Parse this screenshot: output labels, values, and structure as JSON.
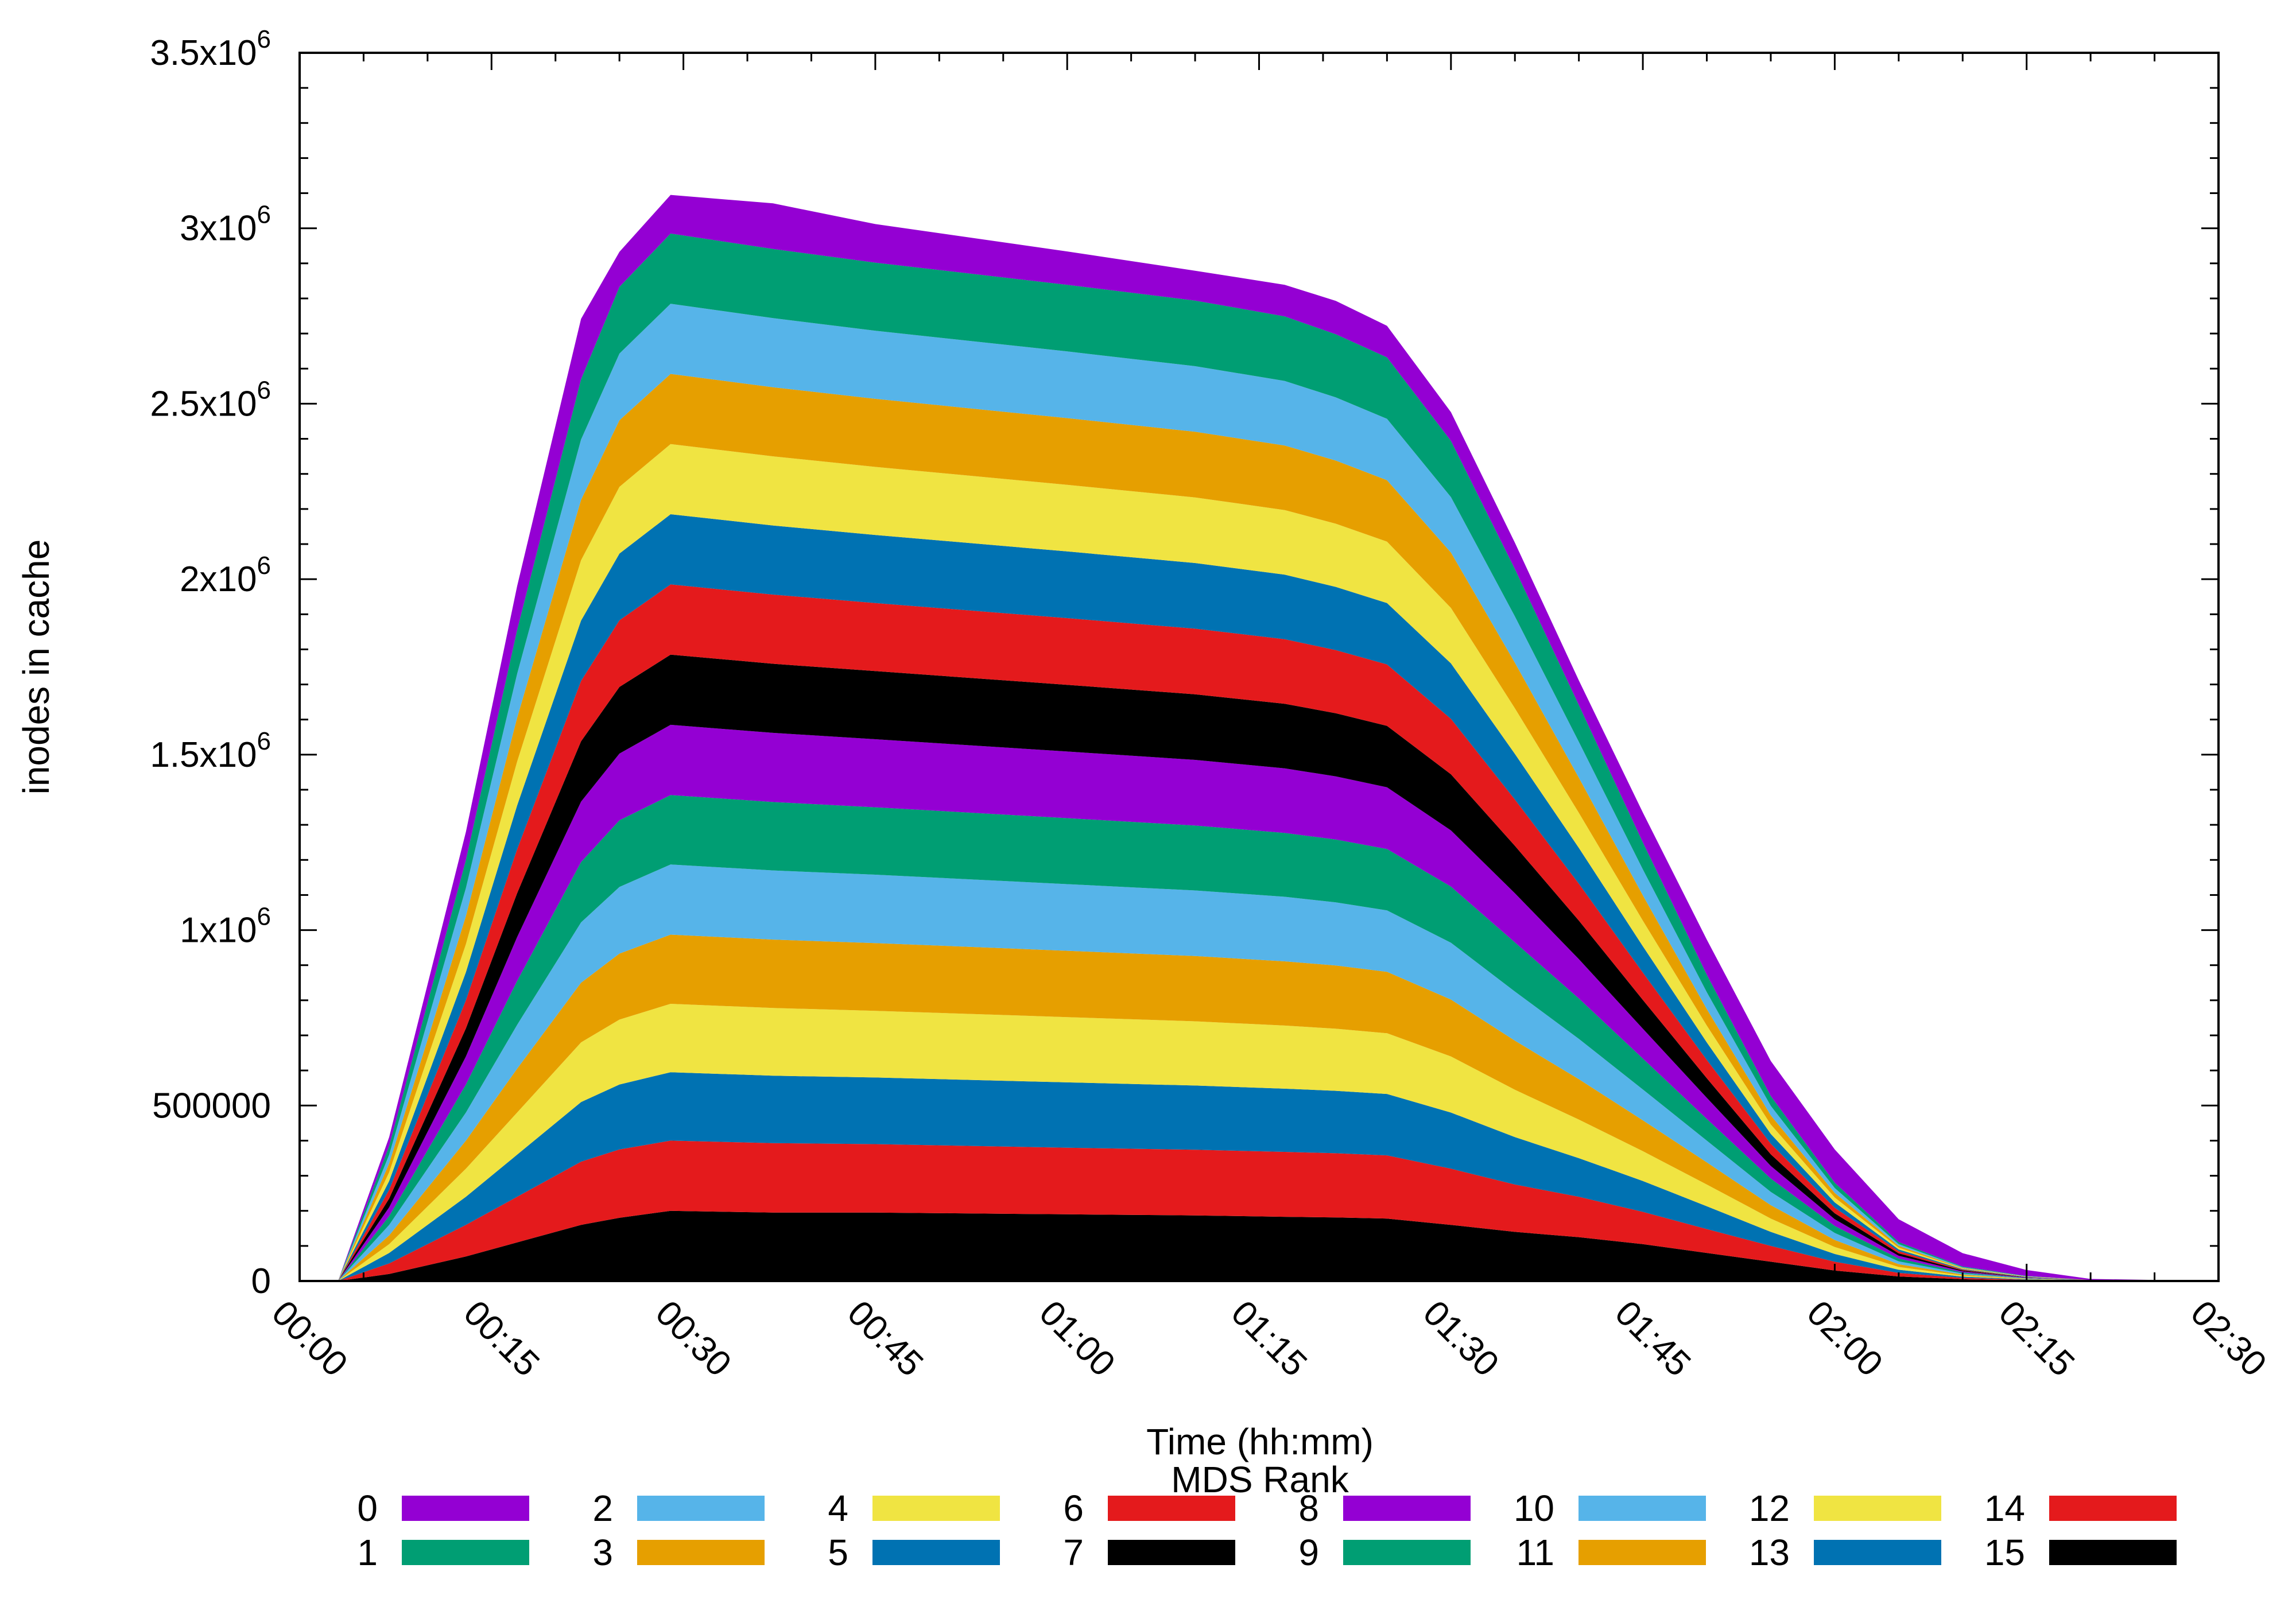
{
  "chart_data": {
    "type": "area",
    "stacked": true,
    "xlabel": "Time (hh:mm)",
    "ylabel": "inodes in cache",
    "legend_title": "MDS Rank",
    "legend_position": "bottom",
    "grid": false,
    "xlim": [
      "00:00",
      "02:30"
    ],
    "ylim": [
      0,
      3500000
    ],
    "x_ticks": [
      "00:00",
      "00:15",
      "00:30",
      "00:45",
      "01:00",
      "01:15",
      "01:30",
      "01:45",
      "02:00",
      "02:15",
      "02:30"
    ],
    "y_ticks": [
      {
        "value": 0,
        "label": "0",
        "base": "",
        "exp": ""
      },
      {
        "value": 500000,
        "label": "500000",
        "base": "",
        "exp": ""
      },
      {
        "value": 1000000,
        "label": "",
        "base": "1x10",
        "exp": "6"
      },
      {
        "value": 1500000,
        "label": "",
        "base": "1.5x10",
        "exp": "6"
      },
      {
        "value": 2000000,
        "label": "",
        "base": "2x10",
        "exp": "6"
      },
      {
        "value": 2500000,
        "label": "",
        "base": "2.5x10",
        "exp": "6"
      },
      {
        "value": 3000000,
        "label": "",
        "base": "3x10",
        "exp": "6"
      },
      {
        "value": 3500000,
        "label": "",
        "base": "3.5x10",
        "exp": "6"
      }
    ],
    "x": [
      "00:03",
      "00:07",
      "00:13",
      "00:17",
      "00:22",
      "00:25",
      "00:29",
      "00:37",
      "00:45",
      "01:00",
      "01:10",
      "01:17",
      "01:21",
      "01:25",
      "01:30",
      "01:35",
      "01:40",
      "01:45",
      "01:50",
      "01:55",
      "02:00",
      "02:05",
      "02:10",
      "02:15",
      "02:20",
      "02:30"
    ],
    "series": [
      {
        "name": "15",
        "color": "#000000",
        "values": [
          0,
          20000,
          70000,
          110000,
          160000,
          180000,
          200000,
          195000,
          195000,
          190000,
          187000,
          183000,
          181000,
          178000,
          160000,
          140000,
          125000,
          105000,
          80000,
          55000,
          30000,
          13000,
          5000,
          2000,
          500,
          0
        ]
      },
      {
        "name": "14",
        "color": "#e41a1c",
        "values": [
          0,
          30000,
          90000,
          130000,
          180000,
          195000,
          200000,
          198000,
          195000,
          190000,
          187000,
          185000,
          183000,
          180000,
          160000,
          135000,
          115000,
          92000,
          68000,
          45000,
          25000,
          10000,
          4000,
          1500,
          300,
          0
        ]
      },
      {
        "name": "13",
        "color": "#0072b2",
        "values": [
          0,
          30000,
          80000,
          120000,
          170000,
          185000,
          195000,
          192000,
          190000,
          186000,
          183000,
          180000,
          178000,
          175000,
          160000,
          135000,
          110000,
          88000,
          65000,
          40000,
          22000,
          9000,
          3500,
          1200,
          300,
          0
        ]
      },
      {
        "name": "12",
        "color": "#f0e442",
        "values": [
          0,
          25000,
          80000,
          120000,
          170000,
          185000,
          195000,
          193000,
          190000,
          186000,
          183000,
          180000,
          177000,
          173000,
          160000,
          135000,
          110000,
          85000,
          62000,
          38000,
          20000,
          8000,
          3000,
          1000,
          200,
          0
        ]
      },
      {
        "name": "11",
        "color": "#e69f00",
        "values": [
          0,
          25000,
          80000,
          125000,
          170000,
          188000,
          197000,
          195000,
          193000,
          189000,
          186000,
          183000,
          180000,
          175000,
          162000,
          140000,
          115000,
          88000,
          63000,
          38000,
          20000,
          8000,
          3000,
          1000,
          200,
          0
        ]
      },
      {
        "name": "10",
        "color": "#56b4e9",
        "values": [
          0,
          30000,
          80000,
          125000,
          172000,
          190000,
          200000,
          197000,
          195000,
          190000,
          187000,
          184000,
          180000,
          175000,
          162000,
          140000,
          115000,
          88000,
          62000,
          38000,
          20000,
          8000,
          3000,
          1000,
          200,
          0
        ]
      },
      {
        "name": "9",
        "color": "#009e73",
        "values": [
          0,
          25000,
          80000,
          125000,
          172000,
          190000,
          198000,
          195000,
          192000,
          188000,
          185000,
          182000,
          179000,
          175000,
          160000,
          140000,
          115000,
          88000,
          62000,
          38000,
          20000,
          8000,
          3000,
          1000,
          200,
          0
        ]
      },
      {
        "name": "8",
        "color": "#9400d3",
        "values": [
          0,
          25000,
          80000,
          125000,
          172000,
          190000,
          200000,
          197000,
          194000,
          190000,
          187000,
          184000,
          180000,
          176000,
          160000,
          140000,
          112000,
          85000,
          60000,
          36000,
          19000,
          8000,
          3000,
          1000,
          200,
          0
        ]
      },
      {
        "name": "7",
        "color": "#000000",
        "values": [
          0,
          25000,
          80000,
          125000,
          172000,
          190000,
          200000,
          197000,
          194000,
          190000,
          187000,
          184000,
          180000,
          175000,
          160000,
          135000,
          110000,
          82000,
          56000,
          33000,
          17000,
          7000,
          2500,
          800,
          150,
          0
        ]
      },
      {
        "name": "6",
        "color": "#e41a1c",
        "values": [
          0,
          25000,
          80000,
          125000,
          172000,
          190000,
          200000,
          197000,
          194000,
          190000,
          187000,
          184000,
          180000,
          175000,
          158000,
          132000,
          105000,
          78000,
          52000,
          30000,
          16000,
          6000,
          2000,
          700,
          150,
          0
        ]
      },
      {
        "name": "5",
        "color": "#0072b2",
        "values": [
          0,
          25000,
          80000,
          125000,
          172000,
          190000,
          200000,
          197000,
          194000,
          190000,
          187000,
          184000,
          180000,
          175000,
          158000,
          130000,
          102000,
          75000,
          50000,
          28000,
          15000,
          5000,
          2000,
          600,
          100,
          0
        ]
      },
      {
        "name": "4",
        "color": "#f0e442",
        "values": [
          0,
          25000,
          80000,
          125000,
          172000,
          190000,
          200000,
          197000,
          194000,
          190000,
          187000,
          184000,
          180000,
          175000,
          158000,
          130000,
          100000,
          73000,
          48000,
          27000,
          14000,
          5000,
          1800,
          600,
          100,
          0
        ]
      },
      {
        "name": "3",
        "color": "#e69f00",
        "values": [
          0,
          25000,
          80000,
          125000,
          172000,
          190000,
          200000,
          197000,
          194000,
          190000,
          187000,
          184000,
          180000,
          175000,
          158000,
          130000,
          100000,
          72000,
          47000,
          26000,
          13000,
          5000,
          1700,
          500,
          100,
          0
        ]
      },
      {
        "name": "2",
        "color": "#56b4e9",
        "values": [
          0,
          25000,
          80000,
          125000,
          172000,
          190000,
          200000,
          197000,
          194000,
          190000,
          187000,
          184000,
          180000,
          175000,
          158000,
          132000,
          102000,
          74000,
          48000,
          27000,
          14000,
          5000,
          1800,
          600,
          100,
          0
        ]
      },
      {
        "name": "1",
        "color": "#009e73",
        "values": [
          0,
          25000,
          80000,
          125000,
          172000,
          190000,
          200000,
          197000,
          194000,
          190000,
          187000,
          184000,
          180000,
          175000,
          160000,
          135000,
          105000,
          77000,
          50000,
          28000,
          15000,
          6000,
          2000,
          700,
          100,
          0
        ]
      },
      {
        "name": "0",
        "color": "#9400d3",
        "values": [
          0,
          25000,
          80000,
          125000,
          172000,
          100000,
          110000,
          130000,
          110000,
          95000,
          85000,
          90000,
          95000,
          90000,
          82000,
          75000,
          70000,
          85000,
          100000,
          100000,
          95000,
          65000,
          38000,
          17000,
          3000,
          0
        ]
      }
    ],
    "legend": [
      {
        "name": "0",
        "color": "#9400d3"
      },
      {
        "name": "1",
        "color": "#009e73"
      },
      {
        "name": "2",
        "color": "#56b4e9"
      },
      {
        "name": "3",
        "color": "#e69f00"
      },
      {
        "name": "4",
        "color": "#f0e442"
      },
      {
        "name": "5",
        "color": "#0072b2"
      },
      {
        "name": "6",
        "color": "#e41a1c"
      },
      {
        "name": "7",
        "color": "#000000"
      },
      {
        "name": "8",
        "color": "#9400d3"
      },
      {
        "name": "9",
        "color": "#009e73"
      },
      {
        "name": "10",
        "color": "#56b4e9"
      },
      {
        "name": "11",
        "color": "#e69f00"
      },
      {
        "name": "12",
        "color": "#f0e442"
      },
      {
        "name": "13",
        "color": "#0072b2"
      },
      {
        "name": "14",
        "color": "#e41a1c"
      },
      {
        "name": "15",
        "color": "#000000"
      }
    ]
  }
}
